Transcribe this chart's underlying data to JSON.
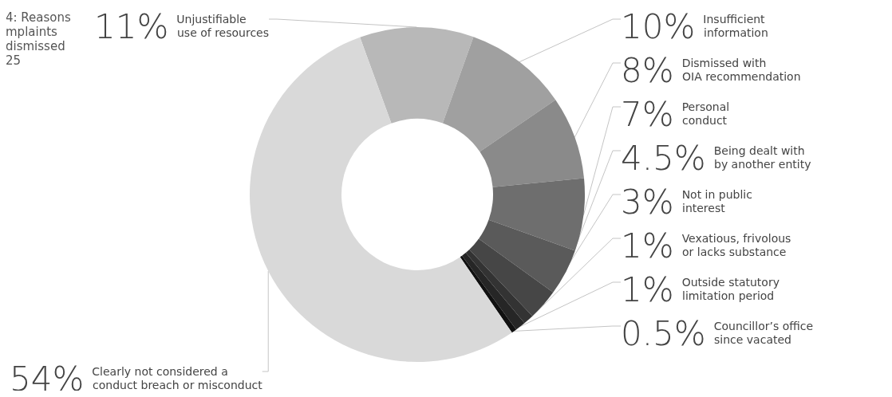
{
  "chart_data": {
    "type": "donut",
    "title": "4: Reasons\nmplaints\ndismissed\n25",
    "categories": [
      "Unjustifiable use of resources",
      "Insufficient information",
      "Dismissed with OIA recommendation",
      "Personal conduct",
      "Being dealt with by another entity",
      "Not in public interest",
      "Vexatious, frivolous or lacks substance",
      "Outside statutory limitation period",
      "Councillor’s office since vacated",
      "Clearly not considered a conduct breach or misconduct"
    ],
    "values": [
      11,
      10,
      8,
      7,
      4.5,
      3,
      1,
      1,
      0.5,
      54
    ],
    "colors": [
      "#b8b8b8",
      "#a0a0a0",
      "#8a8a8a",
      "#6e6e6e",
      "#5a5a5a",
      "#464646",
      "#333333",
      "#262626",
      "#111111",
      "#d9d9d9"
    ],
    "value_labels": [
      "11%",
      "10%",
      "8%",
      "7%",
      "4.5%",
      "3%",
      "1%",
      "1%",
      "0.5%",
      "54%"
    ]
  }
}
